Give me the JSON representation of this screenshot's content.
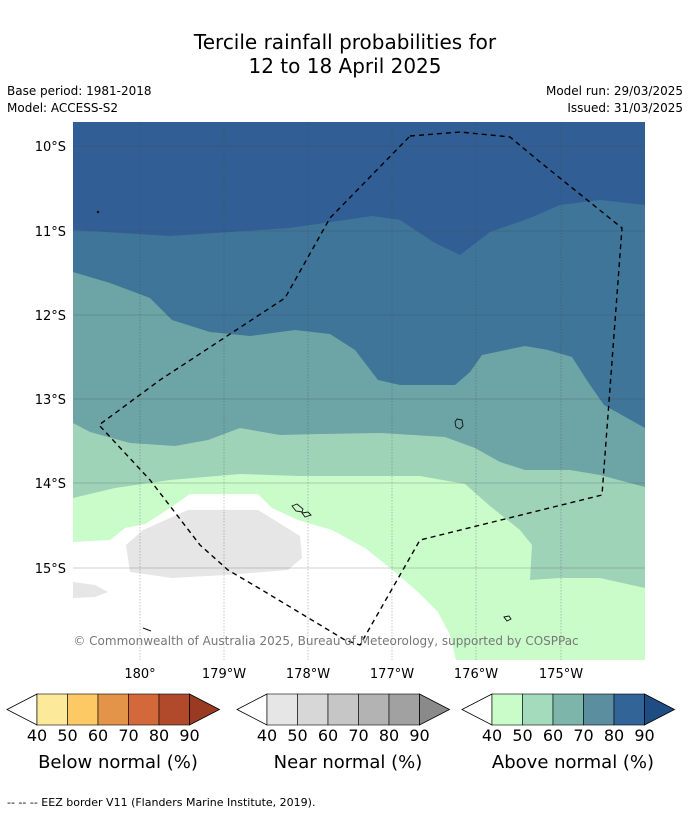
{
  "title": {
    "line1": "Tercile rainfall probabilities for",
    "line2": "12 to 18 April 2025"
  },
  "meta": {
    "base_period": "Base period: 1981-2018",
    "model": "Model: ACCESS-S2",
    "model_run": "Model run: 29/03/2025",
    "issued": "Issued: 31/03/2025"
  },
  "map": {
    "lat_labels": [
      "10°S",
      "11°S",
      "12°S",
      "13°S",
      "14°S",
      "15°S"
    ],
    "lon_labels": [
      "180°",
      "179°W",
      "178°W",
      "177°W",
      "176°W",
      "175°W"
    ],
    "copyright": "© Commonwealth of Australia 2025, Bureau of Meteorology, supported by COSPPac"
  },
  "legends": [
    {
      "label": "Below normal (%)",
      "ticks": [
        "40",
        "50",
        "60",
        "70",
        "80",
        "90"
      ],
      "colors": [
        "#fde99a",
        "#fdc964",
        "#e39449",
        "#d3683a",
        "#b04a2a",
        "#9b3a22"
      ]
    },
    {
      "label": "Near normal (%)",
      "ticks": [
        "40",
        "50",
        "60",
        "70",
        "80",
        "90"
      ],
      "colors": [
        "#e6e6e6",
        "#d7d7d7",
        "#c6c6c6",
        "#b3b3b3",
        "#a1a1a1",
        "#8a8a8a"
      ]
    },
    {
      "label": "Above normal (%)",
      "ticks": [
        "40",
        "50",
        "60",
        "70",
        "80",
        "90"
      ],
      "colors": [
        "#c9fcc9",
        "#a5dbbd",
        "#7db5aa",
        "#5b8fa0",
        "#336497",
        "#1e4d84"
      ]
    }
  ],
  "footer": {
    "eez_note": "--  --  -- EEZ border V11 (Flanders Marine Institute, 2019)."
  },
  "fills": {
    "a90": "#315f95",
    "a80": "#3f7598",
    "a70": "#6da4a6",
    "a60": "#9fd3b8",
    "a50": "#c9fcc9",
    "n40": "#ffffff",
    "n50": "#e6e6e6"
  }
}
